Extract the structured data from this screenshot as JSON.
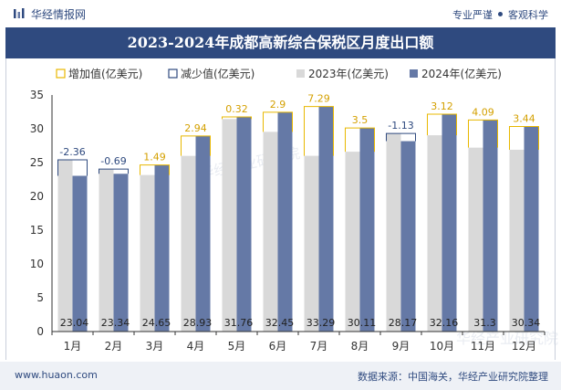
{
  "header": {
    "brand": "华经情报网",
    "tagline_left": "专业严谨",
    "tagline_right": "客观科学"
  },
  "footer": {
    "website": "www.huaon.com",
    "source": "数据来源：中国海关，华经产业研究院整理"
  },
  "chart_data": {
    "type": "bar",
    "title": "2023-2024年成都高新综合保税区月度出口额",
    "categories": [
      "1月",
      "2月",
      "3月",
      "4月",
      "5月",
      "6月",
      "7月",
      "8月",
      "9月",
      "10月",
      "11月",
      "12月"
    ],
    "series": [
      {
        "name": "2023年(亿美元)",
        "color": "#d9d9d9",
        "values": [
          25.4,
          24.03,
          23.16,
          25.99,
          31.44,
          29.55,
          26.0,
          26.61,
          29.3,
          29.04,
          27.21,
          26.9
        ]
      },
      {
        "name": "2024年(亿美元)",
        "color": "#6579a6",
        "values": [
          23.04,
          23.34,
          24.65,
          28.93,
          31.76,
          32.45,
          33.29,
          30.11,
          28.17,
          32.16,
          31.3,
          30.34
        ]
      }
    ],
    "changes": [
      -2.36,
      -0.69,
      1.49,
      2.94,
      0.32,
      2.9,
      7.29,
      3.5,
      -1.13,
      3.12,
      4.09,
      3.44
    ],
    "legend": [
      {
        "name": "增加值(亿美元)",
        "color": "#e8b800"
      },
      {
        "name": "减少值(亿美元)",
        "color": "#2f4a7f"
      },
      {
        "name": "2023年(亿美元)",
        "color": "#d9d9d9"
      },
      {
        "name": "2024年(亿美元)",
        "color": "#6579a6"
      }
    ],
    "legend_position": "top",
    "ylim": [
      0,
      35
    ],
    "yticks": [
      0,
      5,
      10,
      15,
      20,
      25,
      30,
      35
    ],
    "grid": false,
    "watermark": "华经产业研究院"
  }
}
